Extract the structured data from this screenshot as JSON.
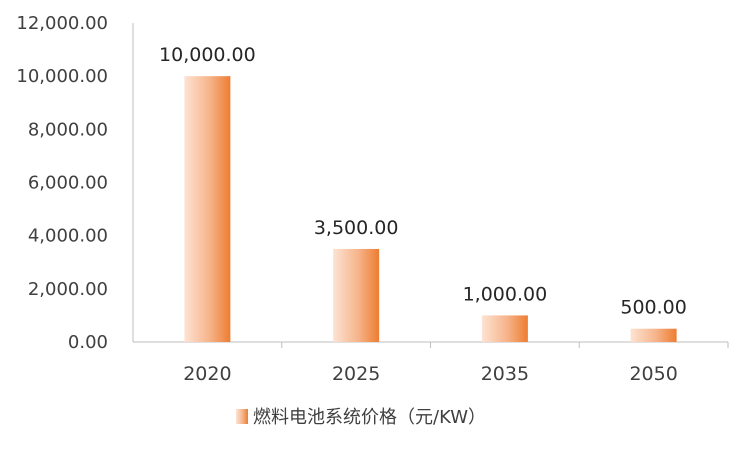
{
  "chart_data": {
    "type": "bar",
    "categories": [
      "2020",
      "2025",
      "2035",
      "2050"
    ],
    "series": [
      {
        "name": "燃料电池系统价格（元/KW）",
        "values": [
          10000,
          3500,
          1000,
          500
        ],
        "value_labels": [
          "10,000.00",
          "3,500.00",
          "1,000.00",
          "500.00"
        ]
      }
    ],
    "ylim": [
      0,
      12000
    ],
    "yticks": [
      0,
      2000,
      4000,
      6000,
      8000,
      10000,
      12000
    ],
    "ytick_labels": [
      "0.00",
      "2,000.00",
      "4,000.00",
      "6,000.00",
      "8,000.00",
      "10,000.00",
      "12,000.00"
    ],
    "grid": false,
    "legend": "bottom",
    "colors": {
      "bar_light": "#fde3d3",
      "bar_dark": "#ed7d31",
      "axis": "#bfbfbf"
    }
  }
}
